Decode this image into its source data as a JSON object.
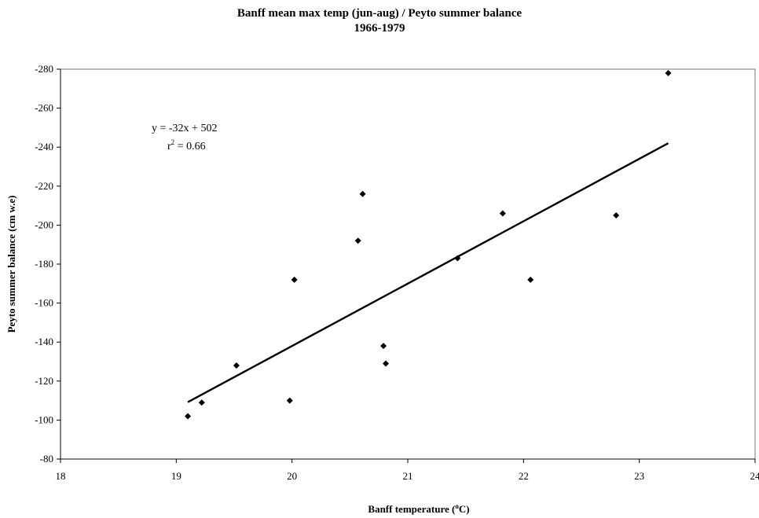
{
  "chart_data": {
    "type": "scatter",
    "title": "Banff mean max temp (jun-aug) / Peyto summer balance",
    "subtitle": "1966-1979",
    "xlabel": "Banff temperature (",
    "xlabel_unit_sup": "o",
    "xlabel_suffix": "C)",
    "ylabel": "Peyto summer balance (cm w.e)",
    "xlim": [
      18,
      24
    ],
    "ylim": [
      -80,
      -280
    ],
    "x_ticks": [
      18,
      19,
      20,
      21,
      22,
      23,
      24
    ],
    "y_ticks": [
      -80,
      -100,
      -120,
      -140,
      -160,
      -180,
      -200,
      -220,
      -240,
      -260,
      -280
    ],
    "grid": false,
    "legend": "none",
    "marker_color": "#000000",
    "points": [
      {
        "x": 19.1,
        "y": -102
      },
      {
        "x": 19.22,
        "y": -109
      },
      {
        "x": 19.52,
        "y": -128
      },
      {
        "x": 19.98,
        "y": -110
      },
      {
        "x": 20.02,
        "y": -172
      },
      {
        "x": 20.57,
        "y": -192
      },
      {
        "x": 20.61,
        "y": -216
      },
      {
        "x": 20.79,
        "y": -138
      },
      {
        "x": 20.81,
        "y": -129
      },
      {
        "x": 21.43,
        "y": -183
      },
      {
        "x": 21.82,
        "y": -206
      },
      {
        "x": 22.06,
        "y": -172
      },
      {
        "x": 22.8,
        "y": -205
      },
      {
        "x": 23.25,
        "y": -278
      }
    ],
    "trendline": {
      "slope": -32,
      "intercept": 502,
      "x_range": [
        19.1,
        23.25
      ]
    },
    "annotation": {
      "equation": "y = -32x + 502",
      "r2_prefix": "r",
      "r2_sup": "2",
      "r2_suffix": " = 0.66"
    }
  }
}
